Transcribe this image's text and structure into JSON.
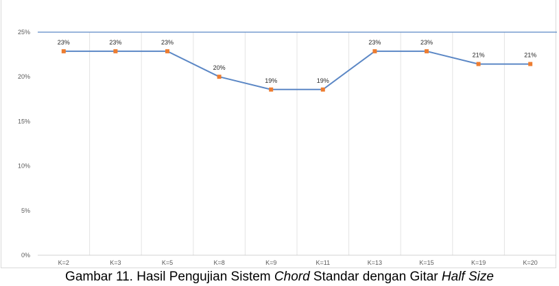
{
  "caption": {
    "prefix": "Gambar 11. Hasil Pengujian Sistem ",
    "italic_1": "Chord",
    "middle": " Standar dengan Gitar ",
    "italic_2": "Half Size"
  },
  "chart_data": {
    "type": "line",
    "categories": [
      "K=2",
      "K=3",
      "K=5",
      "K=8",
      "K=9",
      "K=11",
      "K=13",
      "K=15",
      "K=19",
      "K=20"
    ],
    "series": [
      {
        "values": [
          22.86,
          22.86,
          22.86,
          20.0,
          18.57,
          18.57,
          22.86,
          22.86,
          21.43,
          21.43
        ],
        "data_labels": [
          "23%",
          "23%",
          "23%",
          "20%",
          "19%",
          "19%",
          "23%",
          "23%",
          "21%",
          "21%"
        ],
        "line_color": "#5b87c5",
        "marker_color": "#ed7d31"
      }
    ],
    "y_ticks": [
      "0%",
      "5%",
      "10%",
      "15%",
      "20%",
      "25%"
    ],
    "ylim": [
      0,
      25
    ],
    "grid": "vertical category gridlines",
    "top_line_color": "#5b87c5",
    "legend": "none"
  }
}
